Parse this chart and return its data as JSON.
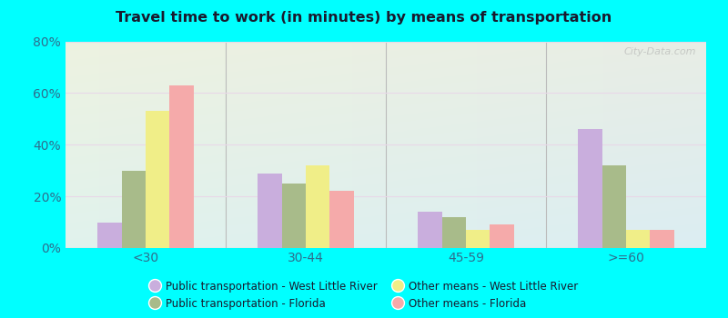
{
  "title": "Travel time to work (in minutes) by means of transportation",
  "categories": [
    "<30",
    "30-44",
    "45-59",
    ">=60"
  ],
  "series": [
    {
      "name": "Public transportation - West Little River",
      "color": "#c9aedd",
      "values": [
        10,
        29,
        14,
        46
      ]
    },
    {
      "name": "Public transportation - Florida",
      "color": "#a8bb8a",
      "values": [
        30,
        25,
        12,
        32
      ]
    },
    {
      "name": "Other means - West Little River",
      "color": "#f0ee88",
      "values": [
        53,
        32,
        7,
        7
      ]
    },
    {
      "name": "Other means - Florida",
      "color": "#f5aaaa",
      "values": [
        63,
        22,
        9,
        7
      ]
    }
  ],
  "ylim": [
    0,
    80
  ],
  "yticks": [
    0,
    20,
    40,
    60,
    80
  ],
  "ytick_labels": [
    "0%",
    "20%",
    "40%",
    "60%",
    "80%"
  ],
  "background_color": "#00ffff",
  "title_color": "#1a1a2e",
  "tick_color": "#2e6e8e",
  "watermark": "City-Data.com",
  "legend_order": [
    0,
    2,
    1,
    3
  ],
  "grid_color": "#ddddcc",
  "divider_color": "#bbbbbb"
}
